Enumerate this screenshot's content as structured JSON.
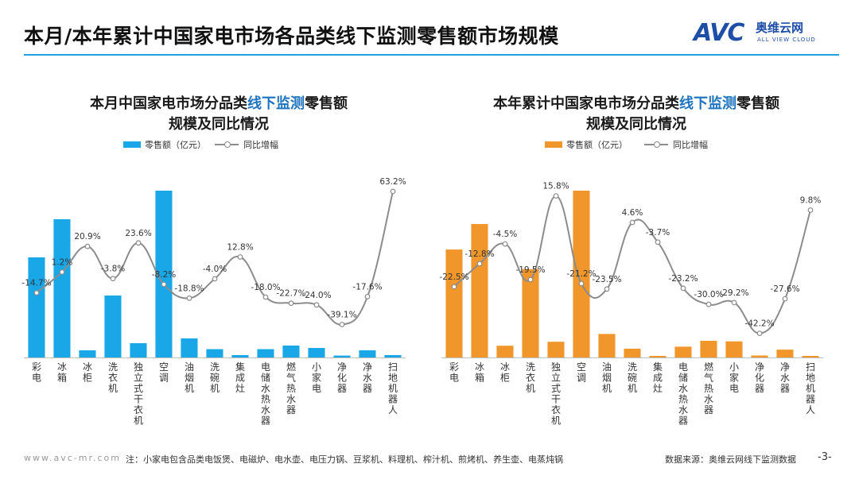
{
  "header": {
    "title": "本月/本年累计中国家电市场各品类线下监测零售额市场规模",
    "logo_avc": "AVC",
    "logo_cn": "奥维云网",
    "logo_en": "ALL VIEW CLOUD"
  },
  "footer": {
    "url": "www.avc-mr.com",
    "note": "注：小家电包含品类电饭煲、电磁炉、电水壶、电压力锅、豆浆机、料理机、榨汁机、煎烤机、养生壶、电蒸炖锅",
    "source": "数据来源：奥维云网线下监测数据",
    "page": "-3-"
  },
  "chart_data": [
    {
      "type": "bar",
      "title_prefix": "本月中国家电市场分品类",
      "title_highlight": "线下监测",
      "title_suffix": "零售额",
      "title_line2": "规模及同比情况",
      "bar_color": "#1aa7e8",
      "line_color": "#8c8c8c",
      "legend": [
        "零售额（亿元）",
        "同比增幅"
      ],
      "categories": [
        "彩电",
        "冰箱",
        "冰柜",
        "洗衣机",
        "独立式干衣机",
        "空调",
        "油烟机",
        "洗碗机",
        "集成灶",
        "电储水热水器",
        "燃气热水器",
        "小家电",
        "净化器",
        "净水器",
        "扫地机器人"
      ],
      "series": [
        {
          "name": "零售额（亿元）",
          "values": [
            42,
            58,
            3,
            26,
            6,
            70,
            8,
            3.5,
            1,
            3.5,
            5,
            4,
            0.8,
            3,
            1
          ]
        },
        {
          "name": "同比增幅",
          "values": [
            -14.7,
            1.2,
            20.9,
            -3.8,
            23.6,
            -8.2,
            -18.8,
            -4.0,
            12.8,
            -18.0,
            -22.7,
            -24.0,
            -39.1,
            -17.6,
            63.2
          ]
        }
      ],
      "labels": [
        "-14.7%",
        "1.2%",
        "20.9%",
        "-3.8%",
        "23.6%",
        "-8.2%",
        "-18.8%",
        "-4.0%",
        "12.8%",
        "-18.0%",
        "-22.7%",
        "-24.0%",
        "-39.1%",
        "-17.6%",
        "63.2%"
      ]
    },
    {
      "type": "bar",
      "title_prefix": "本年累计中国家电市场分品类",
      "title_highlight": "线下监测",
      "title_suffix": "零售额",
      "title_line2": "规模及同比情况",
      "bar_color": "#f0962a",
      "line_color": "#8c8c8c",
      "legend": [
        "零售额（亿元）",
        "同比增幅"
      ],
      "categories": [
        "彩电",
        "冰箱",
        "冰柜",
        "洗衣机",
        "独立式干衣机",
        "空调",
        "油烟机",
        "洗碗机",
        "集成灶",
        "电储水热水器",
        "燃气热水器",
        "小家电",
        "净化器",
        "净水器",
        "扫地机器人"
      ],
      "series": [
        {
          "name": "零售额（亿元）",
          "values": [
            550,
            680,
            60,
            450,
            80,
            850,
            120,
            45,
            8,
            55,
            85,
            82,
            10,
            40,
            8
          ]
        },
        {
          "name": "同比增幅",
          "values": [
            -22.5,
            -12.8,
            -4.5,
            -19.5,
            15.8,
            -21.2,
            -23.5,
            4.6,
            -3.7,
            -23.2,
            -30.0,
            -29.2,
            -42.2,
            -27.6,
            9.8
          ]
        }
      ],
      "labels": [
        "-22.5%",
        "-12.8%",
        "-4.5%",
        "-19.5%",
        "15.8%",
        "-21.2%",
        "-23.5%",
        "4.6%",
        "-3.7%",
        "-23.2%",
        "-30.0%",
        "-29.2%",
        "-42.2%",
        "-27.6%",
        "9.8%"
      ]
    }
  ]
}
